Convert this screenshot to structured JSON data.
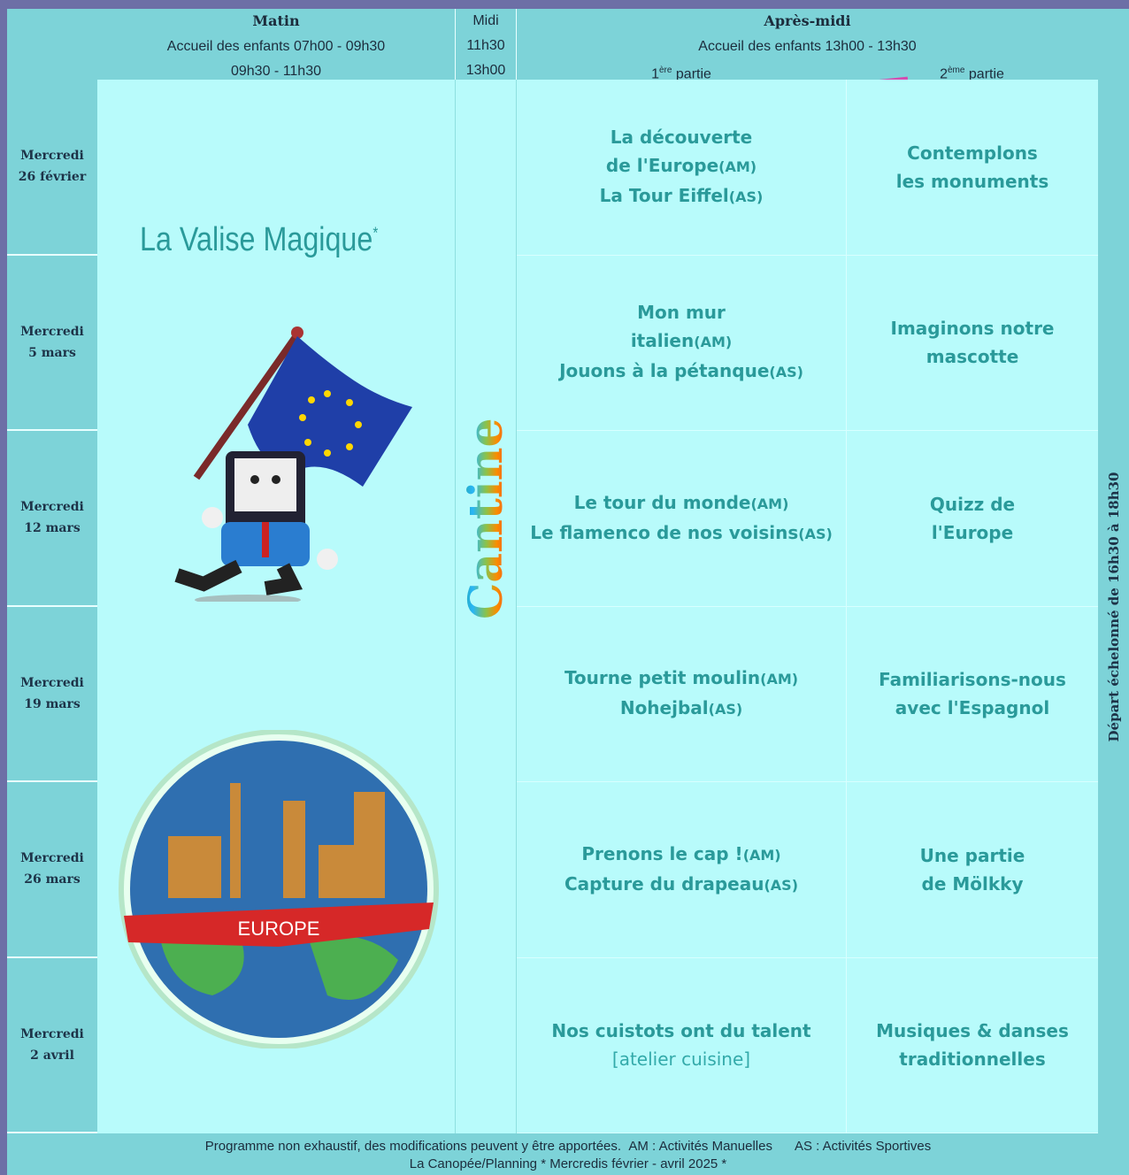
{
  "header": {
    "matin": {
      "title": "Matin",
      "line1": "Accueil des enfants 07h00 - 09h30",
      "line2": "09h30 - 11h30"
    },
    "midi": {
      "title": "Midi",
      "line1": "11h30",
      "line2": "13h00"
    },
    "apres_midi": {
      "title": "Après-midi",
      "line1": "Accueil des enfants 13h00 - 13h30",
      "part1": {
        "num": "1",
        "sup": "ère",
        "label": "partie"
      },
      "part2": {
        "num": "2",
        "sup": "ème",
        "label": "partie"
      }
    }
  },
  "morning": {
    "title": "La Valise Magique",
    "star": "*",
    "banner": "EUROPE"
  },
  "cantine": "Cantine",
  "side_note": "Départ échelonné de 16h30 à 18h30",
  "rows": [
    {
      "day": "Mercredi",
      "date": "26 février",
      "part1": {
        "lines": [
          {
            "text": "La découverte"
          },
          {
            "text": "de l'Europe",
            "tag": "(AM)"
          },
          {
            "text": "La Tour Eiffel",
            "tag": "(AS)"
          }
        ]
      },
      "part2": {
        "lines": [
          {
            "text": "Contemplons"
          },
          {
            "text": "les monuments"
          }
        ]
      }
    },
    {
      "day": "Mercredi",
      "date": "5 mars",
      "part1": {
        "lines": [
          {
            "text": "Mon mur"
          },
          {
            "text": "italien",
            "tag": "(AM)"
          },
          {
            "text": "Jouons à la pétanque",
            "tag": "(AS)"
          }
        ]
      },
      "part2": {
        "lines": [
          {
            "text": "Imaginons notre"
          },
          {
            "text": "mascotte"
          }
        ]
      }
    },
    {
      "day": "Mercredi",
      "date": "12 mars",
      "part1": {
        "lines": [
          {
            "text": "Le tour du monde",
            "tag": "(AM)"
          },
          {
            "text": "Le flamenco de nos voisins",
            "tag": "(AS)"
          }
        ]
      },
      "part2": {
        "lines": [
          {
            "text": "Quizz de"
          },
          {
            "text": "l'Europe"
          }
        ]
      }
    },
    {
      "day": "Mercredi",
      "date": "19 mars",
      "part1": {
        "lines": [
          {
            "text": "Tourne petit moulin",
            "tag": "(AM)"
          },
          {
            "text": "Nohejbal",
            "tag": "(AS)"
          }
        ]
      },
      "part2": {
        "lines": [
          {
            "text": "Familiarisons-nous"
          },
          {
            "text": "avec l'Espagnol"
          }
        ]
      }
    },
    {
      "day": "Mercredi",
      "date": "26 mars",
      "part1": {
        "lines": [
          {
            "text": "Prenons le cap !",
            "tag": "(AM)"
          },
          {
            "text": "Capture du drapeau",
            "tag": "(AS)"
          }
        ]
      },
      "part2": {
        "lines": [
          {
            "text": "Une partie"
          },
          {
            "text": "de Mölkky"
          }
        ]
      }
    },
    {
      "day": "Mercredi",
      "date": "2 avril",
      "part1": {
        "lines": [
          {
            "text": "Nos cuistots ont du talent"
          }
        ],
        "note": "[atelier cuisine]"
      },
      "part2": {
        "lines": [
          {
            "text": "Musiques & danses"
          },
          {
            "text": "traditionnelles"
          }
        ]
      }
    }
  ],
  "footer": {
    "disclaimer": "Programme non exhaustif, des modifications peuvent y être apportées.",
    "am": "AM : Activités Manuelles",
    "as": "AS : Activités Sportives",
    "line2": "La Canopée/Planning * Mercredis février - avril 2025 *"
  }
}
